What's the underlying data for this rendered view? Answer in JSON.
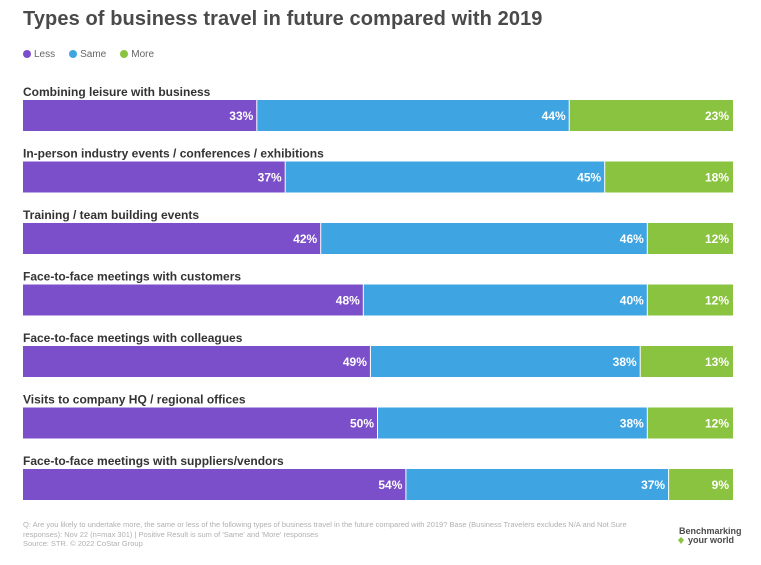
{
  "title": "Types of business travel in future compared with 2019",
  "colors": {
    "less": "#7b4fc9",
    "same": "#3fa4e2",
    "more": "#8ac33f"
  },
  "footnote": {
    "line1": "Q: Are you likely to undertake more, the same or less of the following types of business travel in the future compared with 2019? Base (Business Travelers excludes N/A and Not Sure",
    "line2": "responses): Nov 22 (n=max 301) | Positive Result is sum of 'Same' and 'More' responses",
    "line3": "Source: STR. © 2022 CoStar Group"
  },
  "logo": {
    "line1": "Benchmarking",
    "line2": "your world"
  },
  "chart_data": {
    "type": "bar",
    "stacked": true,
    "orientation": "horizontal",
    "value_suffix": "%",
    "legend_position": "top-left",
    "categories": [
      "Combining leisure with business",
      "In-person industry events / conferences / exhibitions",
      "Training / team building events",
      "Face-to-face meetings with customers",
      "Face-to-face meetings with colleagues",
      "Visits to company HQ / regional offices",
      "Face-to-face meetings with suppliers/vendors"
    ],
    "series": [
      {
        "name": "Less",
        "color": "#7b4fc9",
        "values": [
          33,
          37,
          42,
          48,
          49,
          50,
          54
        ]
      },
      {
        "name": "Same",
        "color": "#3fa4e2",
        "values": [
          44,
          45,
          46,
          40,
          38,
          38,
          37
        ]
      },
      {
        "name": "More",
        "color": "#8ac33f",
        "values": [
          23,
          18,
          12,
          12,
          13,
          12,
          9
        ]
      }
    ]
  }
}
